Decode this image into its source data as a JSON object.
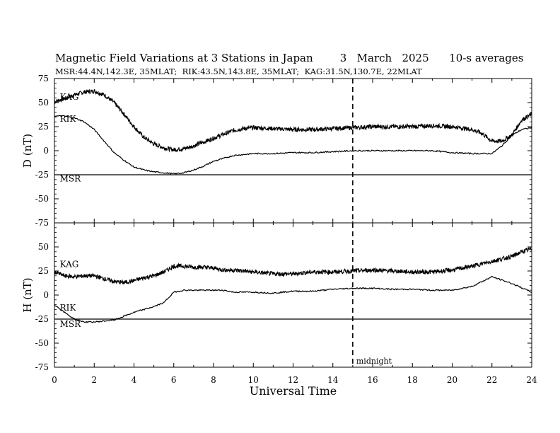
{
  "title": "Magnetic Field Variations at 3 Stations in Japan        3   March   2025      10-s averages",
  "subtitle": "MSR:44.4N,142.3E, 35MLAT;  RIK:43.5N,143.8E, 35MLAT;  KAG:31.5N,130.7E, 22MLAT",
  "chart_data": [
    {
      "type": "line",
      "panel": "D",
      "ylabel": "D (nT)",
      "xlabel": "",
      "ylim": [
        -75,
        75
      ],
      "xlim": [
        0,
        24
      ],
      "yticks": [
        "75",
        "50",
        "25",
        "0",
        "-25",
        "-50",
        "-75"
      ],
      "noisy_series": [
        "KAG"
      ],
      "series": [
        {
          "name": "KAG",
          "label_at": [
            0.2,
            53
          ],
          "x": [
            0,
            0.5,
            1,
            1.5,
            2,
            2.5,
            3,
            3.5,
            4,
            4.5,
            5,
            5.5,
            6,
            6.5,
            7,
            7.5,
            8,
            8.5,
            9,
            9.5,
            10,
            11,
            12,
            13,
            14,
            15,
            16,
            17,
            18,
            19,
            20,
            21,
            21.5,
            22,
            22.5,
            23,
            23.5,
            24
          ],
          "values": [
            51,
            54,
            58,
            61,
            62,
            58,
            50,
            38,
            25,
            14,
            7,
            3,
            1,
            2,
            5,
            9,
            13,
            17,
            21,
            23,
            24,
            23,
            22,
            22,
            23,
            24,
            25,
            25,
            25,
            26,
            25,
            22,
            18,
            10,
            10,
            16,
            32,
            38
          ]
        },
        {
          "name": "RIK",
          "label_at": [
            0.2,
            30
          ],
          "x": [
            0,
            0.5,
            1,
            1.5,
            2,
            2.5,
            3,
            3.5,
            4,
            4.5,
            5,
            5.5,
            6,
            6.5,
            7,
            7.5,
            8,
            8.5,
            9,
            9.5,
            10,
            11,
            12,
            13,
            14,
            15,
            16,
            17,
            18,
            19,
            20,
            21,
            22,
            22.5,
            23,
            23.5,
            24
          ],
          "values": [
            36,
            36,
            34,
            30,
            22,
            10,
            -2,
            -10,
            -17,
            -20,
            -22,
            -23,
            -24,
            -23,
            -20,
            -16,
            -11,
            -8,
            -5,
            -4,
            -3,
            -3,
            -2,
            -2,
            -1,
            0,
            0,
            0,
            0,
            0,
            -2,
            -3,
            -3,
            5,
            16,
            22,
            24
          ]
        },
        {
          "name": "MSR",
          "label_at": [
            0.2,
            -32
          ],
          "x": [
            0,
            24
          ],
          "values": [
            -25,
            -25
          ]
        }
      ]
    },
    {
      "type": "line",
      "panel": "H",
      "ylabel": "H (nT)",
      "xlabel": "Universal Time",
      "ylim": [
        -75,
        75
      ],
      "xlim": [
        0,
        24
      ],
      "xticks": [
        "0",
        "2",
        "4",
        "6",
        "8",
        "10",
        "12",
        "14",
        "16",
        "18",
        "20",
        "22",
        "24"
      ],
      "yticks": [
        "",
        "50",
        "25",
        "0",
        "-25",
        "-50",
        "-75"
      ],
      "noisy_series": [
        "KAG"
      ],
      "series": [
        {
          "name": "KAG",
          "label_at": [
            0.2,
            29
          ],
          "x": [
            0,
            0.5,
            1,
            1.5,
            2,
            2.5,
            3,
            3.5,
            4,
            4.5,
            5,
            5.5,
            6,
            6.5,
            7,
            7.5,
            8,
            8.5,
            9,
            9.5,
            10,
            11,
            12,
            13,
            14,
            15,
            16,
            17,
            18,
            19,
            20,
            21,
            22,
            23,
            23.5,
            24
          ],
          "values": [
            24,
            20,
            19,
            20,
            20,
            17,
            14,
            13,
            15,
            18,
            20,
            24,
            30,
            30,
            29,
            29,
            28,
            26,
            26,
            25,
            24,
            22,
            22,
            24,
            24,
            25,
            26,
            25,
            24,
            24,
            26,
            30,
            35,
            40,
            45,
            48
          ]
        },
        {
          "name": "RIK",
          "label_at": [
            0.2,
            -16
          ],
          "x": [
            0,
            0.5,
            1,
            1.5,
            2,
            2.5,
            3,
            3.5,
            4,
            4.5,
            5,
            5.5,
            6,
            6.5,
            7,
            7.5,
            8,
            8.5,
            9,
            9.5,
            10,
            11,
            12,
            13,
            14,
            15,
            16,
            17,
            18,
            19,
            20,
            21,
            22,
            23,
            24
          ],
          "values": [
            -10,
            -18,
            -25,
            -28,
            -28,
            -27,
            -26,
            -22,
            -18,
            -15,
            -12,
            -8,
            3,
            5,
            5,
            5,
            5,
            5,
            3,
            3,
            3,
            2,
            4,
            4,
            6,
            7,
            7,
            6,
            6,
            5,
            5,
            9,
            19,
            12,
            3
          ]
        },
        {
          "name": "MSR",
          "label_at": [
            0.2,
            -33
          ],
          "x": [
            0,
            24
          ],
          "values": [
            -25,
            -25
          ]
        }
      ]
    }
  ],
  "midnight_line": {
    "x": 15,
    "label": "midnight"
  }
}
